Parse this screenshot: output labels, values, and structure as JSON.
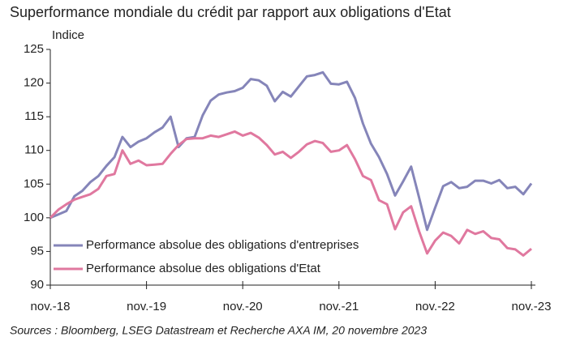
{
  "chart_data": {
    "type": "line",
    "title": "Superformance mondiale du crédit par rapport aux obligations d'Etat",
    "ylabel": "Indice",
    "source": "Sources : Bloomberg, LSEG Datastream et Recherche AXA IM, 20 novembre 2023",
    "categories": [
      "nov.-18",
      null,
      null,
      null,
      null,
      null,
      null,
      null,
      null,
      null,
      null,
      null,
      "nov.-19",
      null,
      null,
      null,
      null,
      null,
      null,
      null,
      null,
      null,
      null,
      null,
      "nov.-20",
      null,
      null,
      null,
      null,
      null,
      null,
      null,
      null,
      null,
      null,
      null,
      "nov.-21",
      null,
      null,
      null,
      null,
      null,
      null,
      null,
      null,
      null,
      null,
      null,
      "nov.-22",
      null,
      null,
      null,
      null,
      null,
      null,
      null,
      null,
      null,
      null,
      null,
      "nov.-23"
    ],
    "series": [
      {
        "name": "Performance absolue des obligations d'entreprises",
        "color": "#8585b9",
        "values": [
          100,
          100.5,
          101,
          103.2,
          104,
          105.3,
          106.2,
          107.7,
          109,
          112,
          110.5,
          111.3,
          111.8,
          112.7,
          113.4,
          115,
          110.5,
          111.8,
          112,
          115.2,
          117.4,
          118.3,
          118.6,
          118.8,
          119.3,
          120.6,
          120.4,
          119.6,
          117.3,
          118.7,
          118,
          119.5,
          121,
          121.2,
          121.6,
          119.9,
          119.8,
          120.2,
          117.8,
          114,
          111,
          109,
          106.5,
          103.3,
          105.4,
          107.6,
          103,
          98.2,
          101.5,
          104.7,
          105.3,
          104.4,
          104.6,
          105.5,
          105.5,
          105.1,
          105.6,
          104.4,
          104.6,
          103.5,
          105.1
        ]
      },
      {
        "name": "Performance absolue des obligations d'Etat",
        "color": "#e0789f",
        "values": [
          100,
          101.2,
          102,
          102.7,
          103.1,
          103.5,
          104.3,
          106.2,
          106.5,
          110,
          108,
          108.5,
          107.8,
          107.9,
          108,
          109.5,
          110.8,
          111.7,
          111.8,
          111.8,
          112.2,
          112,
          112.4,
          112.8,
          112.2,
          112.6,
          111.9,
          110.8,
          109.4,
          109.8,
          108.9,
          109.8,
          110.9,
          111.4,
          111.1,
          109.8,
          110,
          110.8,
          108.7,
          106.2,
          105.6,
          102.6,
          102,
          98.3,
          100.8,
          101.7,
          98,
          94.7,
          96.6,
          97.8,
          97.3,
          96.2,
          98.2,
          97.6,
          98,
          97,
          96.8,
          95.5,
          95.3,
          94.4,
          95.4
        ]
      }
    ],
    "ylim": [
      90,
      125
    ],
    "yticks": [
      90,
      95,
      100,
      105,
      110,
      115,
      120,
      125
    ],
    "grid": false,
    "legend": "lower left"
  }
}
